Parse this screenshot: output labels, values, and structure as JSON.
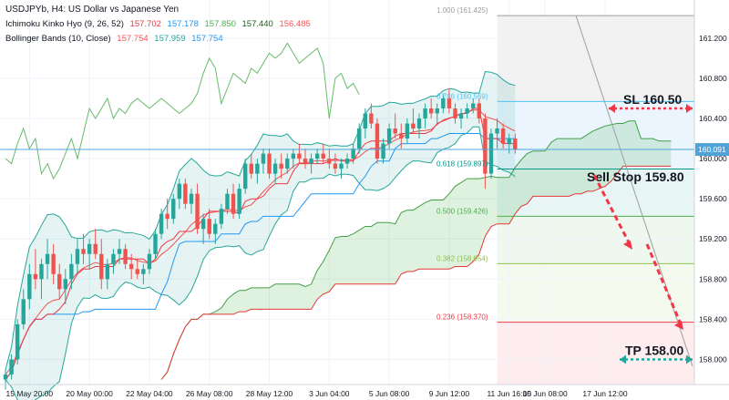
{
  "chart_data": {
    "type": "candlestick",
    "title": "USDJPYb, H4: US Dollar vs Japanese Yen",
    "legend": [
      {
        "name": "Ichimoku Kinko Hyo (9, 26, 52)",
        "values": [
          "157.702",
          "157.178",
          "157.850",
          "157.440",
          "156.485"
        ],
        "colors": [
          "#f23645",
          "#2196f3",
          "#4caf50",
          "#1b5e20",
          "#ff5252"
        ]
      },
      {
        "name": "Bollinger Bands (10, Close)",
        "values": [
          "157.754",
          "157.959",
          "157.754"
        ],
        "colors": [
          "#ff5252",
          "#26a69a",
          "#2196f3"
        ]
      }
    ],
    "ylim": [
      157.75,
      161.58
    ],
    "y_ticks": [
      {
        "value": 158.0,
        "label": "158.000"
      },
      {
        "value": 158.4,
        "label": "158.400"
      },
      {
        "value": 158.8,
        "label": "158.800"
      },
      {
        "value": 159.2,
        "label": "159.200"
      },
      {
        "value": 159.6,
        "label": "159.600"
      },
      {
        "value": 160.0,
        "label": "160.000"
      },
      {
        "value": 160.4,
        "label": "160.400"
      },
      {
        "value": 160.8,
        "label": "160.800"
      },
      {
        "value": 161.2,
        "label": "161.200"
      }
    ],
    "x_ticks": [
      "15 May 20:00",
      "20 May 00:00",
      "22 May 04:00",
      "26 May 08:00",
      "28 May 12:00",
      "3 Jun 04:00",
      "5 Jun 08:00",
      "9 Jun 12:00",
      "11 Jun 16:00",
      "15 Jun 08:00",
      "17 Jun 12:00"
    ],
    "x_tick_bars": [
      4,
      14,
      24,
      34,
      44,
      54,
      64,
      74,
      84,
      90,
      100
    ],
    "last_bar": 86,
    "total_bars": 104,
    "current_price": {
      "value": 160.091,
      "label": "160.091"
    },
    "fib_levels": [
      {
        "ratio": "1.000",
        "price": 161.425,
        "label": "1.000 (161.425)",
        "color": "#9e9e9e"
      },
      {
        "ratio": "0.786",
        "price": 160.569,
        "label": "0.786 (160.569)",
        "color": "#4fc3f7"
      },
      {
        "ratio": "0.618",
        "price": 159.897,
        "label": "0.618 (159.897)",
        "color": "#009688"
      },
      {
        "ratio": "0.500",
        "price": 159.426,
        "label": "0.500 (159.426)",
        "color": "#4caf50"
      },
      {
        "ratio": "0.382",
        "price": 158.954,
        "label": "0.382 (158.954)",
        "color": "#8bc34a"
      },
      {
        "ratio": "0.236",
        "price": 158.37,
        "label": "0.236 (158.370)",
        "color": "#f23645"
      }
    ],
    "fib_start_bar": 82,
    "candles": [
      [
        157.8,
        157.9,
        157.7,
        157.85
      ],
      [
        157.85,
        158.05,
        157.8,
        158.0
      ],
      [
        158.0,
        158.4,
        157.95,
        158.35
      ],
      [
        158.35,
        158.7,
        158.3,
        158.6
      ],
      [
        158.6,
        158.95,
        158.5,
        158.85
      ],
      [
        158.85,
        159.1,
        158.7,
        158.8
      ],
      [
        158.8,
        159.0,
        158.6,
        158.95
      ],
      [
        158.95,
        159.2,
        158.8,
        159.05
      ],
      [
        159.05,
        159.15,
        158.75,
        158.85
      ],
      [
        158.85,
        158.95,
        158.6,
        158.7
      ],
      [
        158.7,
        158.9,
        158.55,
        158.8
      ],
      [
        158.8,
        159.05,
        158.7,
        158.95
      ],
      [
        158.95,
        159.2,
        158.85,
        159.1
      ],
      [
        159.1,
        159.25,
        158.95,
        159.05
      ],
      [
        159.05,
        159.2,
        158.9,
        159.15
      ],
      [
        159.15,
        159.3,
        159.0,
        159.05
      ],
      [
        159.05,
        159.2,
        158.7,
        158.8
      ],
      [
        158.8,
        159.0,
        158.7,
        158.95
      ],
      [
        158.95,
        159.1,
        158.85,
        159.05
      ],
      [
        159.05,
        159.2,
        158.95,
        159.1
      ],
      [
        159.1,
        159.15,
        158.9,
        158.95
      ],
      [
        158.95,
        159.05,
        158.8,
        158.9
      ],
      [
        158.9,
        159.0,
        158.8,
        158.85
      ],
      [
        158.85,
        158.95,
        158.75,
        158.9
      ],
      [
        158.9,
        159.1,
        158.85,
        159.05
      ],
      [
        159.05,
        159.3,
        159.0,
        159.25
      ],
      [
        159.25,
        159.5,
        159.2,
        159.45
      ],
      [
        159.45,
        159.6,
        159.3,
        159.4
      ],
      [
        159.4,
        159.65,
        159.35,
        159.6
      ],
      [
        159.6,
        159.8,
        159.5,
        159.75
      ],
      [
        159.75,
        159.8,
        159.5,
        159.55
      ],
      [
        159.55,
        159.7,
        159.45,
        159.65
      ],
      [
        159.65,
        159.75,
        159.25,
        159.3
      ],
      [
        159.3,
        159.45,
        159.15,
        159.4
      ],
      [
        159.4,
        159.5,
        159.2,
        159.25
      ],
      [
        159.25,
        159.4,
        159.15,
        159.35
      ],
      [
        159.35,
        159.55,
        159.3,
        159.5
      ],
      [
        159.5,
        159.7,
        159.45,
        159.65
      ],
      [
        159.65,
        159.75,
        159.4,
        159.45
      ],
      [
        159.45,
        159.75,
        159.4,
        159.7
      ],
      [
        159.7,
        160.0,
        159.65,
        159.95
      ],
      [
        159.95,
        160.05,
        159.8,
        159.85
      ],
      [
        159.85,
        160.0,
        159.75,
        159.95
      ],
      [
        159.95,
        160.1,
        159.85,
        160.05
      ],
      [
        160.05,
        160.1,
        159.8,
        159.85
      ],
      [
        159.85,
        160.0,
        159.75,
        159.95
      ],
      [
        159.95,
        160.05,
        159.8,
        159.9
      ],
      [
        159.9,
        160.05,
        159.85,
        160.0
      ],
      [
        160.0,
        160.1,
        159.9,
        160.05
      ],
      [
        160.05,
        160.15,
        159.95,
        160.0
      ],
      [
        160.0,
        160.1,
        159.9,
        159.95
      ],
      [
        159.95,
        160.05,
        159.85,
        160.0
      ],
      [
        160.0,
        160.1,
        159.95,
        160.05
      ],
      [
        160.05,
        160.15,
        159.95,
        160.0
      ],
      [
        160.0,
        160.1,
        159.9,
        159.95
      ],
      [
        159.95,
        160.05,
        159.85,
        159.9
      ],
      [
        159.9,
        160.0,
        159.8,
        159.95
      ],
      [
        159.95,
        160.05,
        159.9,
        160.0
      ],
      [
        160.0,
        160.15,
        159.95,
        160.1
      ],
      [
        160.1,
        160.35,
        160.05,
        160.3
      ],
      [
        160.3,
        160.5,
        160.2,
        160.45
      ],
      [
        160.45,
        160.55,
        160.3,
        160.35
      ],
      [
        160.35,
        160.4,
        159.95,
        160.0
      ],
      [
        160.0,
        160.2,
        159.95,
        160.15
      ],
      [
        160.15,
        160.35,
        160.1,
        160.3
      ],
      [
        160.3,
        160.45,
        160.2,
        160.25
      ],
      [
        160.25,
        160.35,
        160.1,
        160.2
      ],
      [
        160.2,
        160.4,
        160.15,
        160.35
      ],
      [
        160.35,
        160.5,
        160.25,
        160.3
      ],
      [
        160.3,
        160.45,
        160.2,
        160.4
      ],
      [
        160.4,
        160.55,
        160.3,
        160.5
      ],
      [
        160.5,
        160.6,
        160.4,
        160.45
      ],
      [
        160.45,
        160.55,
        160.35,
        160.5
      ],
      [
        160.5,
        160.65,
        160.45,
        160.6
      ],
      [
        160.6,
        160.7,
        160.45,
        160.5
      ],
      [
        160.5,
        160.55,
        160.35,
        160.4
      ],
      [
        160.4,
        160.5,
        160.3,
        160.45
      ],
      [
        160.45,
        160.55,
        160.4,
        160.5
      ],
      [
        160.5,
        160.6,
        160.45,
        160.55
      ],
      [
        160.55,
        160.6,
        160.35,
        160.4
      ],
      [
        160.4,
        160.45,
        159.7,
        159.85
      ],
      [
        159.85,
        160.3,
        159.8,
        160.25
      ],
      [
        160.25,
        160.4,
        160.1,
        160.3
      ],
      [
        160.3,
        160.35,
        160.1,
        160.15
      ],
      [
        160.15,
        160.25,
        160.05,
        160.2
      ],
      [
        160.2,
        160.25,
        160.05,
        160.09
      ]
    ],
    "annotations": [
      {
        "text": "SL 160.50",
        "price": 160.5
      },
      {
        "text": "Sell Stop 159.80",
        "price": 159.8
      },
      {
        "text": "TP 158.00",
        "price": 158.0
      }
    ],
    "colors": {
      "up": "#26a69a",
      "down": "#ef5350",
      "current_line": "#4fa3d9",
      "arrow": "#f23645",
      "tp_arrow": "#26a69a",
      "tenkan": "#f23645",
      "kijun": "#2196f3",
      "chikou": "#66bb6a"
    }
  }
}
